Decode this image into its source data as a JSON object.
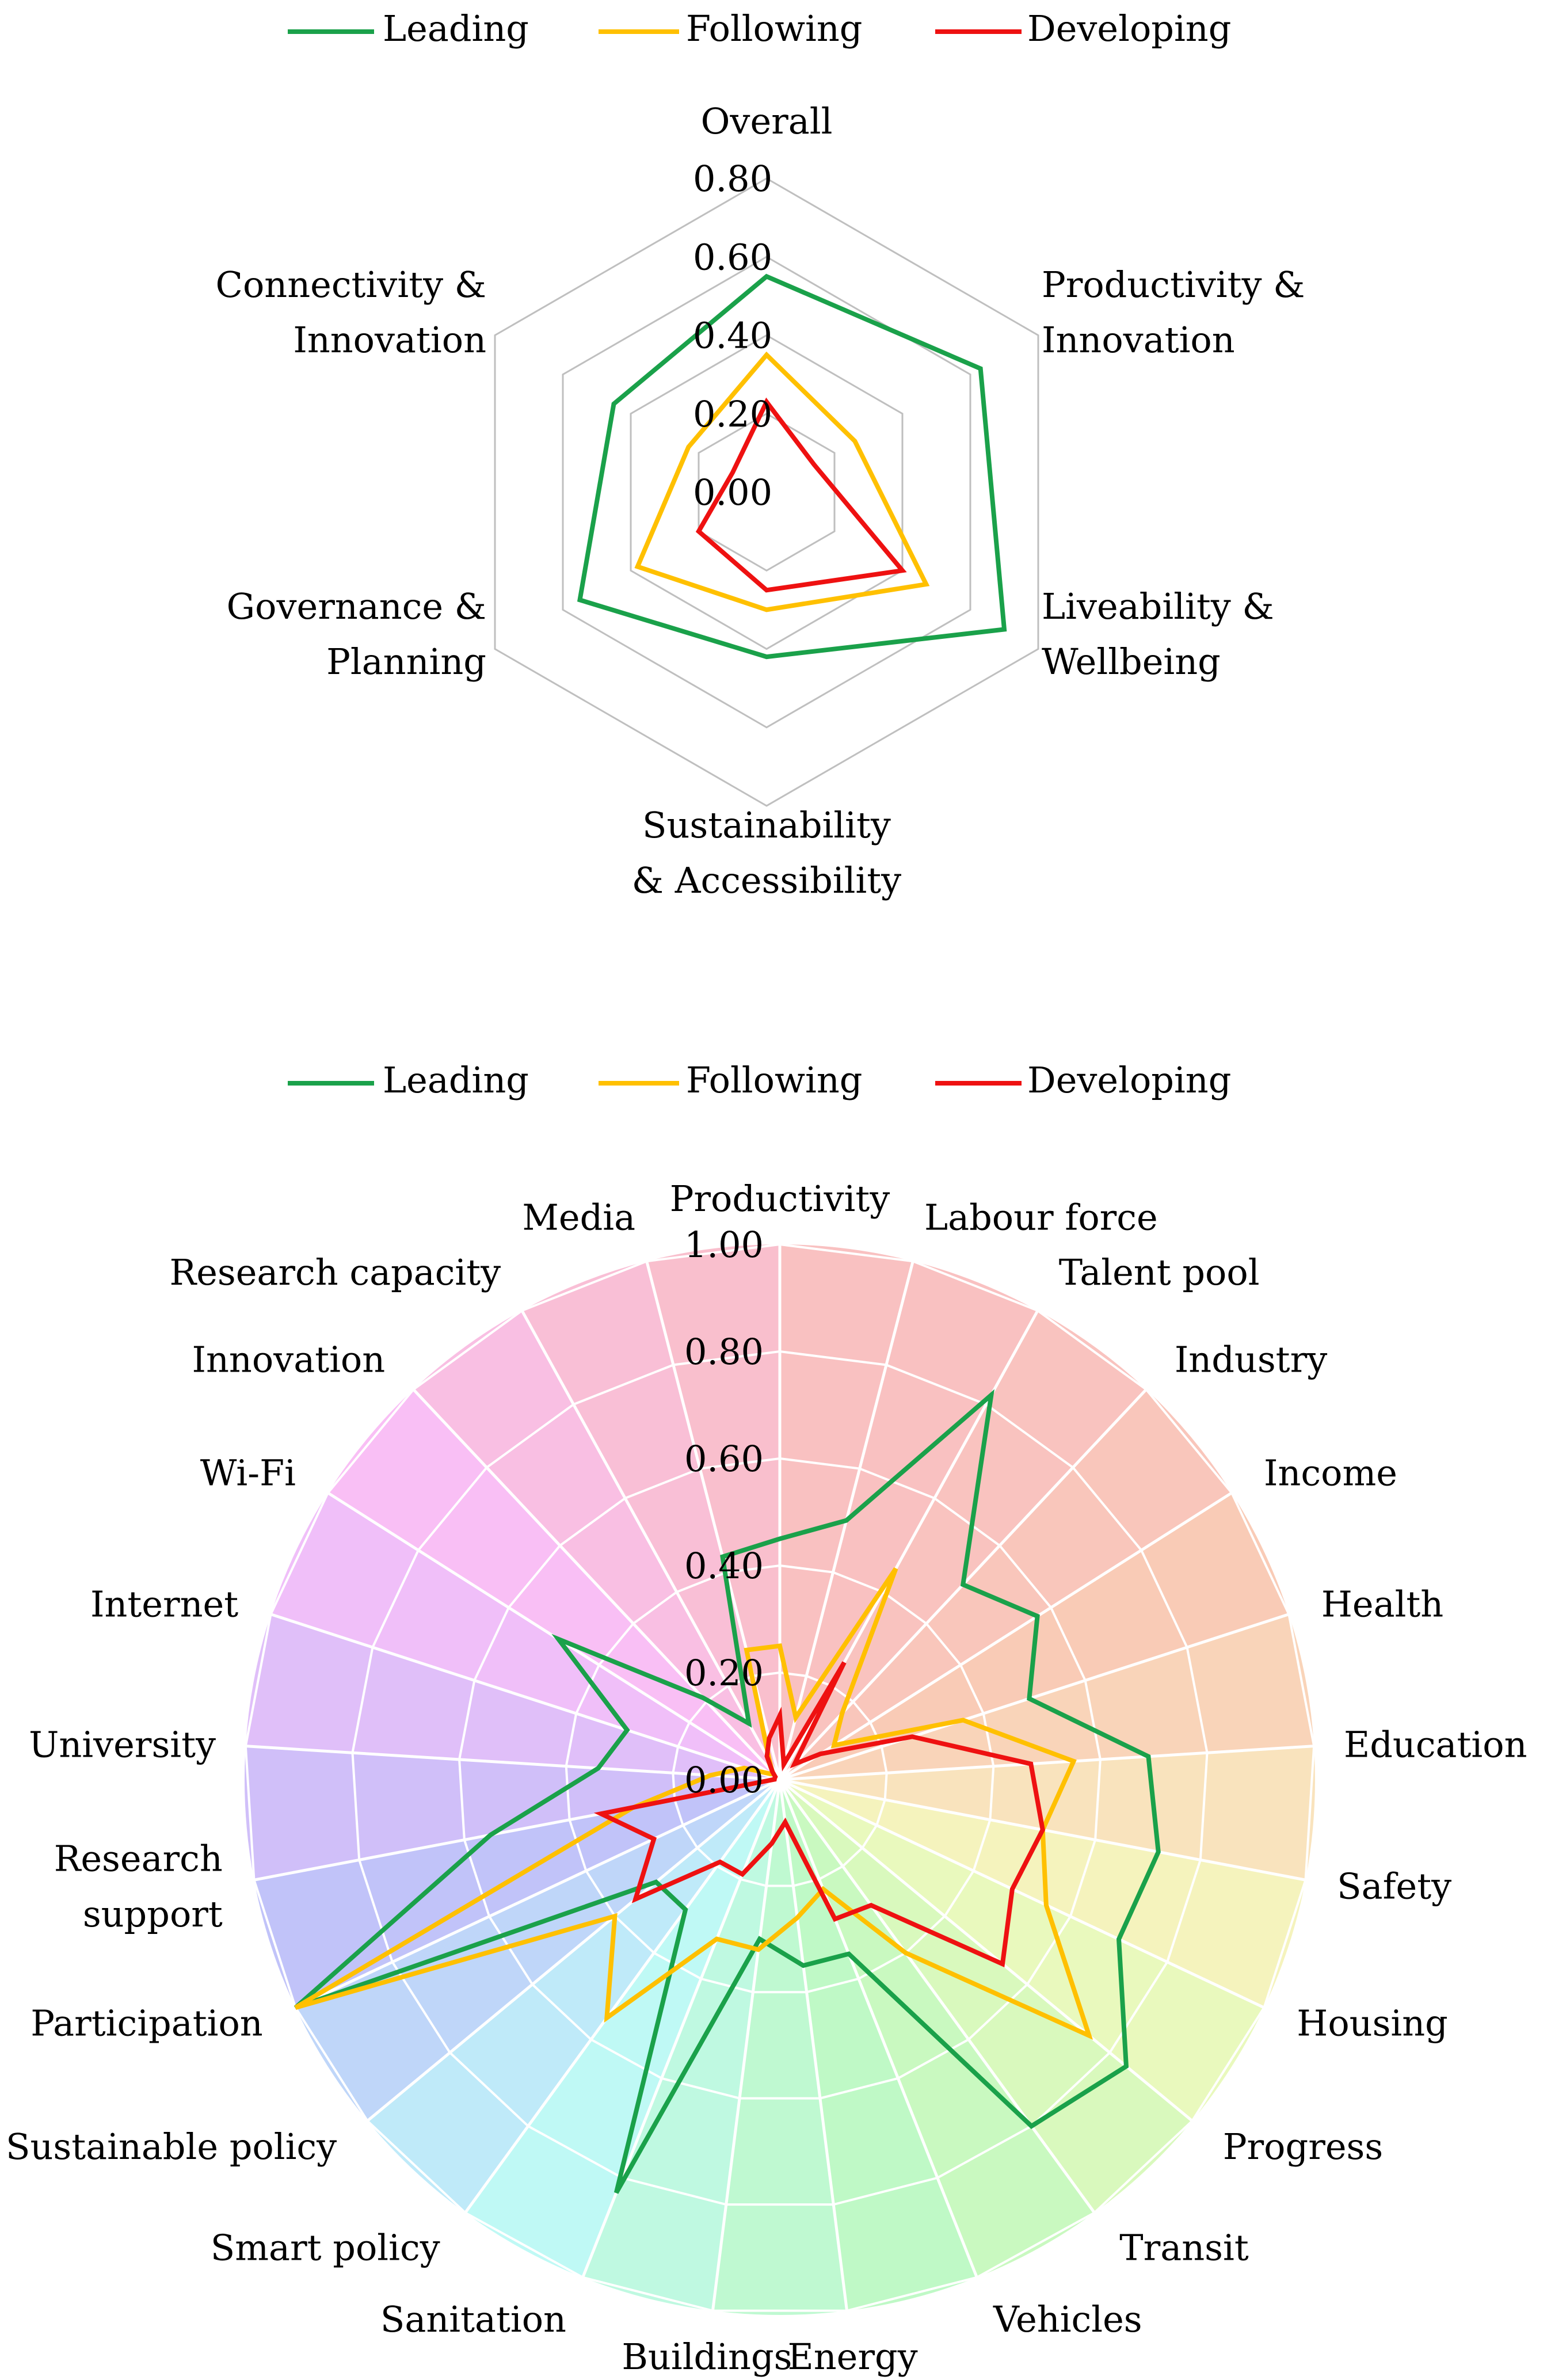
{
  "colors": {
    "leading": "#1aa14a",
    "following": "#ffc000",
    "developing": "#ee1111",
    "grid": "#bfbfbf",
    "sector_grid": "#ffffff"
  },
  "chart_data": [
    {
      "type": "radar",
      "legend_position": "top-center",
      "legend": [
        "Leading",
        "Following",
        "Developing"
      ],
      "categories": [
        "Overall",
        "Productivity & Innovation",
        "Liveability & Wellbeing",
        "Sustainability & Accessibility",
        "Governance & Planning",
        "Connectivity & Innovation"
      ],
      "tick_labels": [
        "0.00",
        "0.20",
        "0.40",
        "0.60",
        "0.80"
      ],
      "rlim": [
        0,
        0.8
      ],
      "series": [
        {
          "name": "Leading",
          "values": [
            0.55,
            0.63,
            0.7,
            0.42,
            0.55,
            0.45
          ]
        },
        {
          "name": "Following",
          "values": [
            0.35,
            0.26,
            0.47,
            0.3,
            0.38,
            0.23
          ]
        },
        {
          "name": "Developing",
          "values": [
            0.23,
            0.14,
            0.4,
            0.25,
            0.2,
            0.1
          ]
        }
      ]
    },
    {
      "type": "radar",
      "legend_position": "top-center",
      "legend": [
        "Leading",
        "Following",
        "Developing"
      ],
      "categories": [
        "Productivity",
        "Labour force",
        "Talent pool",
        "Industry",
        "Income",
        "Health",
        "Education",
        "Safety",
        "Housing",
        "Progress",
        "Transit",
        "Vehicles",
        "Energy",
        "Buildings",
        "Sanitation",
        "Smart policy",
        "Sustainable policy",
        "Participation",
        "Research support",
        "University",
        "Internet",
        "Wi-Fi",
        "Innovation",
        "Research capacity",
        "Media"
      ],
      "sector_colors": [
        "#f9c1c1",
        "#f9c1c1",
        "#f9c3bf",
        "#f9c6bb",
        "#f9cbb6",
        "#f9d4b9",
        "#f9e3bd",
        "#f5f3bd",
        "#e9f9bd",
        "#d9f9bd",
        "#c9f9c0",
        "#bff9c6",
        "#bff9d1",
        "#bff9e1",
        "#bff9f5",
        "#bfeaf9",
        "#bfd6f9",
        "#c1c3f9",
        "#d0bff9",
        "#e0bff9",
        "#f0bff9",
        "#f9bff5",
        "#f9bfe3",
        "#f9bfd6",
        "#f9bfcd"
      ],
      "tick_labels": [
        "0.00",
        "0.20",
        "0.40",
        "0.60",
        "0.80",
        "1.00"
      ],
      "rlim": [
        0,
        1.0
      ],
      "series": [
        {
          "name": "Leading",
          "values": [
            0.45,
            0.5,
            0.82,
            0.5,
            0.57,
            0.49,
            0.69,
            0.72,
            0.7,
            0.84,
            0.8,
            0.35,
            0.35,
            0.3,
            0.83,
            0.3,
            0.3,
            1.0,
            0.55,
            0.34,
            0.3,
            0.49,
            0.21,
            0.12,
            0.43
          ]
        },
        {
          "name": "Following",
          "values": [
            0.25,
            0.12,
            0.45,
            0.17,
            0.12,
            0.36,
            0.55,
            0.5,
            0.55,
            0.75,
            0.4,
            0.22,
            0.26,
            0.32,
            0.32,
            0.55,
            0.4,
            1.0,
            0.28,
            0.13,
            0.07,
            0.02,
            0.02,
            0.04,
            0.25
          ]
        },
        {
          "name": "Developing",
          "values": [
            0.12,
            0.03,
            0.25,
            0.04,
            0.09,
            0.26,
            0.47,
            0.5,
            0.48,
            0.54,
            0.29,
            0.28,
            0.08,
            0.12,
            0.19,
            0.19,
            0.35,
            0.26,
            0.34,
            0.01,
            0.01,
            0.01,
            0.02,
            0.05,
            0.08
          ]
        }
      ]
    }
  ]
}
